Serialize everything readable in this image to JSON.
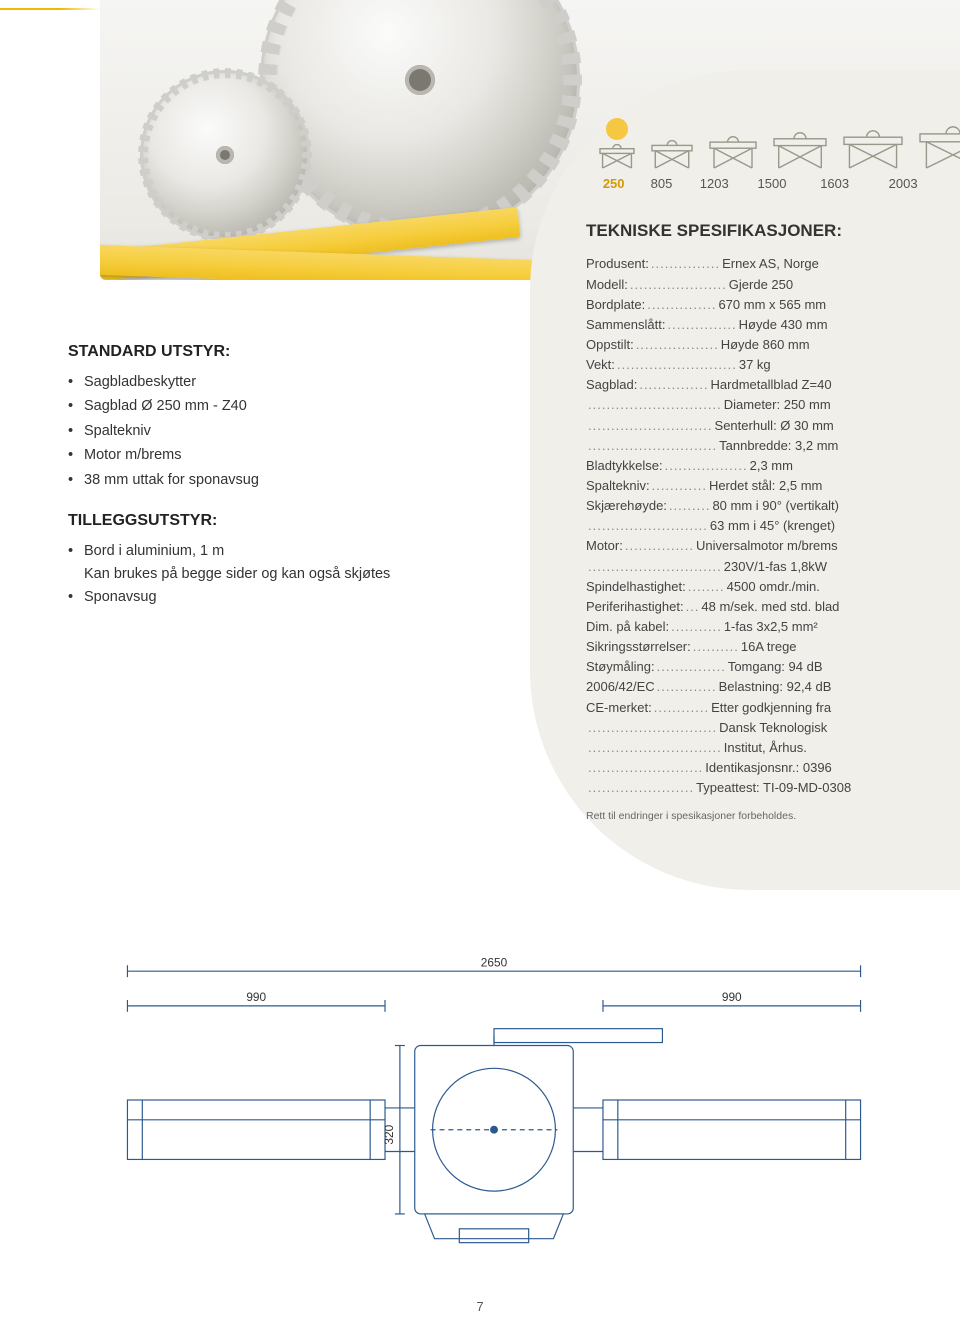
{
  "hero": {
    "accent_color": "#f2b700"
  },
  "sizes": {
    "active_index": 0,
    "labels": [
      "250",
      "805",
      "1203",
      "1500",
      "1603",
      "2003"
    ],
    "icon_widths": [
      38,
      44,
      50,
      56,
      62,
      70
    ],
    "icon_heights": [
      26,
      30,
      34,
      38,
      40,
      44
    ],
    "dot_color": "#f6c740",
    "icon_stroke": "#9a978b"
  },
  "panel": {
    "bg": "#f0efe9",
    "title": "TEKNISKE SPESIFIKASJONER:"
  },
  "specs": [
    {
      "label": "Produsent:",
      "value": "Ernex AS, Norge"
    },
    {
      "label": "Modell:",
      "value": "Gjerde 250"
    },
    {
      "label": "Bordplate:",
      "value": "670 mm x 565 mm"
    },
    {
      "label": "Sammenslått:",
      "value": "Høyde 430 mm"
    },
    {
      "label": "Oppstilt:",
      "value": "Høyde 860 mm"
    },
    {
      "label": "Vekt:",
      "value": "37 kg"
    },
    {
      "label": "Sagblad:",
      "value": "Hardmetallblad Z=40"
    },
    {
      "label": "",
      "value": "Diameter: 250 mm"
    },
    {
      "label": "",
      "value": "Senterhull: Ø 30 mm"
    },
    {
      "label": "",
      "value": "Tannbredde: 3,2 mm"
    },
    {
      "label": "Bladtykkelse:",
      "value": "2,3 mm"
    },
    {
      "label": "Spaltekniv:",
      "value": "Herdet stål: 2,5 mm"
    },
    {
      "label": "Skjærehøyde:",
      "value": "80 mm i 90° (vertikalt)"
    },
    {
      "label": "",
      "value": "63 mm i 45° (krenget)"
    },
    {
      "label": "Motor:",
      "value": "Universalmotor m/brems"
    },
    {
      "label": "",
      "value": "230V/1-fas 1,8kW"
    },
    {
      "label": "Spindelhastighet:",
      "value": "4500 omdr./min."
    },
    {
      "label": "Periferihastighet:",
      "value": "48 m/sek. med std. blad"
    },
    {
      "label": "Dim. på kabel:",
      "value": "1-fas 3x2,5 mm²"
    },
    {
      "label": "Sikringsstørrelser:",
      "value": "16A trege"
    },
    {
      "label": "Støymåling:",
      "value": "Tomgang: 94 dB"
    },
    {
      "label": "2006/42/EC",
      "value": "Belastning: 92,4 dB"
    },
    {
      "label": "CE-merket:",
      "value": "Etter godkjenning fra"
    },
    {
      "label": "",
      "value": "Dansk Teknologisk"
    },
    {
      "label": "",
      "value": "Institut, Århus."
    },
    {
      "label": "",
      "value": "Identikasjonsnr.: 0396"
    },
    {
      "label": "",
      "value": "Typeattest: TI-09-MD-0308"
    }
  ],
  "spec_note": "Rett til endringer i spesikasjoner forbeholdes.",
  "left": {
    "std_title": "STANDARD UTSTYR:",
    "std_items": [
      "Sagbladbeskytter",
      "Sagblad Ø 250 mm - Z40",
      "Spaltekniv",
      "Motor m/brems",
      "38 mm uttak for sponavsug"
    ],
    "add_title": "TILLEGGSUTSTYR:",
    "add_items": [
      {
        "text": "Bord i aluminium, 1 m",
        "sub": "Kan brukes på begge sider og kan også skjøtes"
      },
      {
        "text": "Sponavsug",
        "sub": ""
      }
    ]
  },
  "drawing": {
    "dims": {
      "total_w": "2650",
      "side_w_left": "990",
      "side_w_right": "990",
      "depth": "320"
    },
    "stroke": "#2c5a8f",
    "stroke_width": 1.2
  },
  "page_number": "7"
}
